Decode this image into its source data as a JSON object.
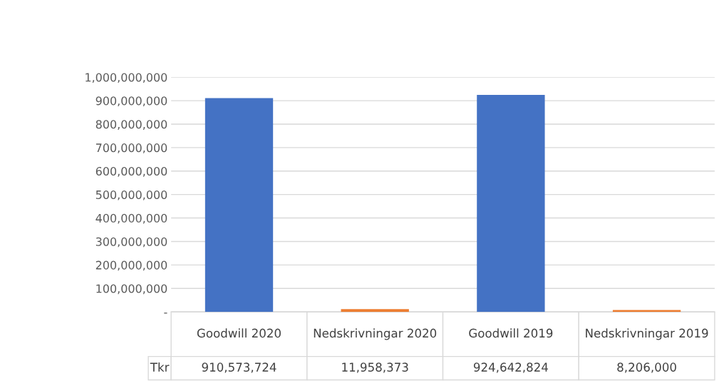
{
  "chart_data": {
    "type": "bar",
    "categories": [
      "Goodwill 2020",
      "Nedskrivningar 2020",
      "Goodwill 2019",
      "Nedskrivningar 2019"
    ],
    "series": [
      {
        "name": "Tkr",
        "values": [
          910573724,
          11958373,
          924642824,
          8206000
        ],
        "colors": [
          "#4472c4",
          "#ed7d31",
          "#4472c4",
          "#ed7d31"
        ],
        "value_labels": [
          "910,573,724",
          "11,958,373",
          "924,642,824",
          "8,206,000"
        ]
      }
    ],
    "ylim": [
      0,
      1000000000
    ],
    "yticks": [
      {
        "value": 0,
        "label": "-"
      },
      {
        "value": 100000000,
        "label": "100,000,000"
      },
      {
        "value": 200000000,
        "label": "200,000,000"
      },
      {
        "value": 300000000,
        "label": "300,000,000"
      },
      {
        "value": 400000000,
        "label": "400,000,000"
      },
      {
        "value": 500000000,
        "label": "500,000,000"
      },
      {
        "value": 600000000,
        "label": "600,000,000"
      },
      {
        "value": 700000000,
        "label": "700,000,000"
      },
      {
        "value": 800000000,
        "label": "800,000,000"
      },
      {
        "value": 900000000,
        "label": "900,000,000"
      },
      {
        "value": 1000000000,
        "label": "1,000,000,000"
      }
    ],
    "grid": "y",
    "legend": false
  }
}
